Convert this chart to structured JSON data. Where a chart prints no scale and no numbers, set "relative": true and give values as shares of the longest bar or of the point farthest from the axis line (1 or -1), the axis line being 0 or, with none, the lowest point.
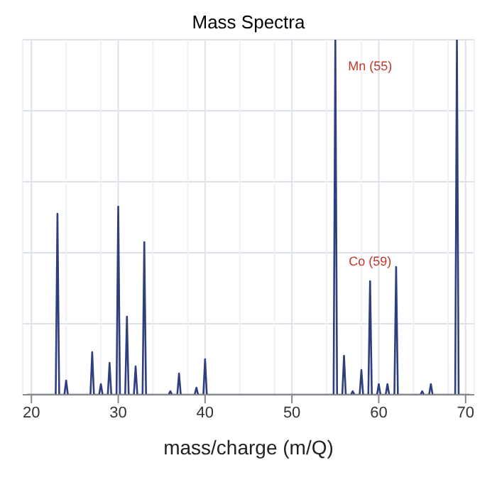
{
  "chart_data": {
    "type": "line",
    "title": "Mass Spectra",
    "xlabel": "mass/charge (m/Q)",
    "relative": true,
    "x": [
      19.5,
      22.8,
      23,
      23.2,
      23.8,
      24,
      24.2,
      26.8,
      27,
      27.2,
      27.8,
      28,
      28.2,
      28.8,
      29,
      29.2,
      29.8,
      30,
      30.2,
      30.8,
      31,
      31.2,
      31.8,
      32,
      32.2,
      32.8,
      33,
      33.2,
      35.8,
      36,
      36.2,
      36.8,
      37,
      37.2,
      38.8,
      39,
      39.2,
      39.8,
      40,
      40.2,
      54.8,
      55,
      55.2,
      55.8,
      56,
      56.2,
      56.8,
      57,
      57.2,
      57.8,
      58,
      58.2,
      58.8,
      59,
      59.2,
      59.8,
      60,
      60.2,
      60.8,
      61,
      61.2,
      61.8,
      62,
      62.2,
      64.8,
      65,
      65.2,
      65.8,
      66,
      66.2,
      68.8,
      69,
      69.2,
      70.5
    ],
    "series": [
      {
        "color": "#2e3f7f",
        "values": [
          0,
          0,
          0.51,
          0,
          0,
          0.04,
          0,
          0,
          0.12,
          0,
          0,
          0.03,
          0,
          0,
          0.09,
          0,
          0,
          0.53,
          0,
          0,
          0.22,
          0,
          0,
          0.08,
          0,
          0,
          0.43,
          0,
          0,
          0.01,
          0,
          0,
          0.06,
          0,
          0,
          0.02,
          0,
          0,
          0.1,
          0,
          0,
          1,
          0,
          0,
          0.11,
          0,
          0,
          0.01,
          0,
          0,
          0.07,
          0,
          0,
          0.32,
          0,
          0,
          0.03,
          0,
          0,
          0.03,
          0,
          0,
          0.36,
          0,
          0,
          0.01,
          0,
          0,
          0.03,
          0,
          0,
          1,
          0,
          0
        ]
      }
    ],
    "xlim": [
      19,
      71
    ],
    "xticks": [
      20,
      30,
      40,
      50,
      60,
      70
    ],
    "grid": true,
    "legend": false,
    "marker": "none",
    "line_style": "solid",
    "annotations": [
      {
        "text": "Mn (55)",
        "x": 55,
        "y": 1
      },
      {
        "text": "Co (59)",
        "x": 59,
        "y": 0.32
      }
    ]
  }
}
